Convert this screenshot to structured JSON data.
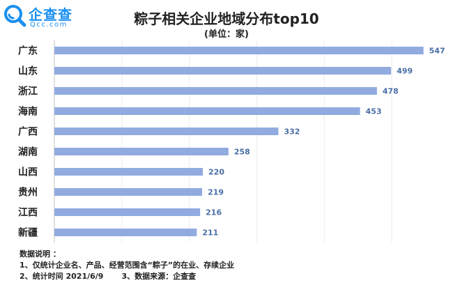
{
  "brand": {
    "name": "企查查",
    "domain": "Qcc.com",
    "color": "#1a8ff0"
  },
  "chart_data": {
    "type": "bar",
    "orientation": "horizontal",
    "title": "粽子相关企业地域分布top10",
    "subtitle": "(单位：家)",
    "categories": [
      "广东",
      "山东",
      "浙江",
      "海南",
      "广西",
      "湖南",
      "山西",
      "贵州",
      "江西",
      "新疆"
    ],
    "values": [
      547,
      499,
      478,
      453,
      332,
      258,
      220,
      219,
      216,
      211
    ],
    "xlim": [
      0,
      600
    ],
    "grid": true,
    "bar_color": "#91abe0",
    "label_color": "#4a6ea6"
  },
  "notes": {
    "heading": "数据说明 ：",
    "line1": "1、仅统计企业名、产品、经营范围含“粽子”的在业、存续企业",
    "line2_part1": "2、统计时间  2021/6/9",
    "line2_part2": "3、数据来源：企查查"
  }
}
